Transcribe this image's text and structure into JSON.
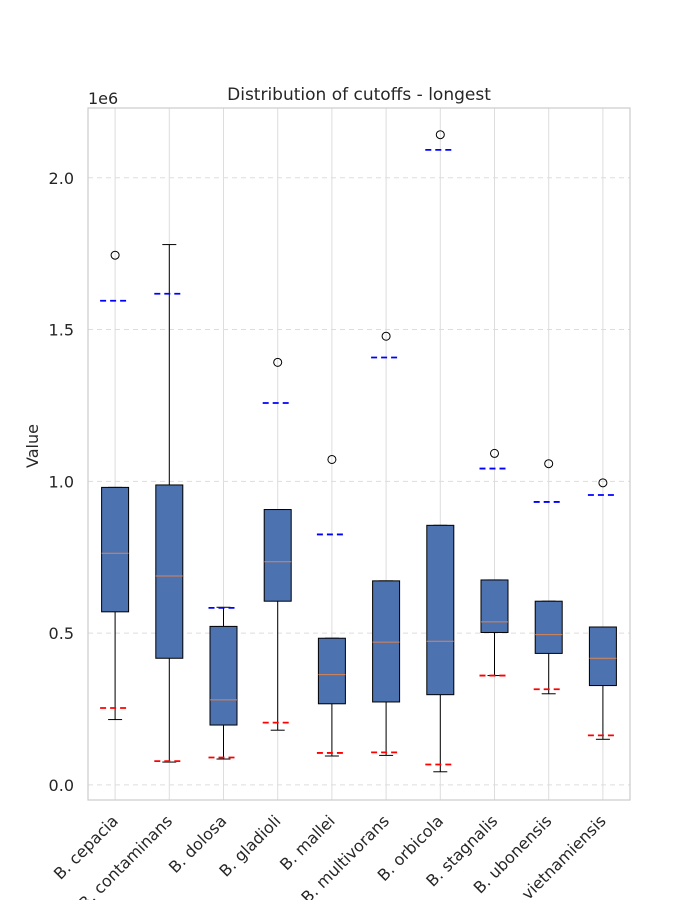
{
  "chart_data": {
    "type": "box",
    "title": "Distribution of cutoffs - longest",
    "xlabel": "",
    "ylabel": "Value",
    "y_scale_label": "1e6",
    "ylim": [
      -0.05,
      2.23
    ],
    "yticks": [
      0.0,
      0.5,
      1.0,
      1.5,
      2.0
    ],
    "ytick_labels": [
      "0.0",
      "0.5",
      "1.0",
      "1.5",
      "2.0"
    ],
    "grid": "horizontal dashed + vertical solid",
    "categories": [
      "B. cepacia",
      "B. contaminans",
      "B. dolosa",
      "B. gladioli",
      "B. mallei",
      "B. multivorans",
      "B. orbicola",
      "B. stagnalis",
      "B. ubonensis",
      "B. vietnamiensis"
    ],
    "boxes": [
      {
        "whislo": 0.215,
        "q1": 0.57,
        "med": 0.763,
        "q3": 0.98,
        "whishi": 0.98,
        "fliers": [
          1.745
        ],
        "upper_line": 1.595,
        "lower_line": 0.253
      },
      {
        "whislo": 0.075,
        "q1": 0.417,
        "med": 0.688,
        "q3": 0.988,
        "whishi": 1.78,
        "fliers": [],
        "upper_line": 1.618,
        "lower_line": 0.078
      },
      {
        "whislo": 0.085,
        "q1": 0.197,
        "med": 0.28,
        "q3": 0.522,
        "whishi": 0.585,
        "fliers": [],
        "upper_line": 0.583,
        "lower_line": 0.09
      },
      {
        "whislo": 0.18,
        "q1": 0.605,
        "med": 0.735,
        "q3": 0.907,
        "whishi": 0.907,
        "fliers": [
          1.392
        ],
        "upper_line": 1.258,
        "lower_line": 0.205
      },
      {
        "whislo": 0.095,
        "q1": 0.267,
        "med": 0.363,
        "q3": 0.483,
        "whishi": 0.483,
        "fliers": [
          1.072
        ],
        "upper_line": 0.825,
        "lower_line": 0.105
      },
      {
        "whislo": 0.097,
        "q1": 0.273,
        "med": 0.47,
        "q3": 0.672,
        "whishi": 0.672,
        "fliers": [
          1.478
        ],
        "upper_line": 1.408,
        "lower_line": 0.107
      },
      {
        "whislo": 0.043,
        "q1": 0.297,
        "med": 0.473,
        "q3": 0.855,
        "whishi": 0.855,
        "fliers": [
          2.142
        ],
        "upper_line": 2.092,
        "lower_line": 0.067
      },
      {
        "whislo": 0.36,
        "q1": 0.502,
        "med": 0.537,
        "q3": 0.675,
        "whishi": 0.675,
        "fliers": [
          1.092
        ],
        "upper_line": 1.042,
        "lower_line": 0.36
      },
      {
        "whislo": 0.3,
        "q1": 0.433,
        "med": 0.495,
        "q3": 0.605,
        "whishi": 0.605,
        "fliers": [
          1.058
        ],
        "upper_line": 0.932,
        "lower_line": 0.315
      },
      {
        "whislo": 0.15,
        "q1": 0.327,
        "med": 0.417,
        "q3": 0.52,
        "whishi": 0.52,
        "fliers": [
          0.995
        ],
        "upper_line": 0.955,
        "lower_line": 0.163
      }
    ],
    "colors": {
      "box_fill": "#4c72b0",
      "median": "#dd8452",
      "upper_line": "#0000ff",
      "lower_line": "#ff0000",
      "grid": "#dddddd",
      "spine": "#cccccc"
    }
  }
}
